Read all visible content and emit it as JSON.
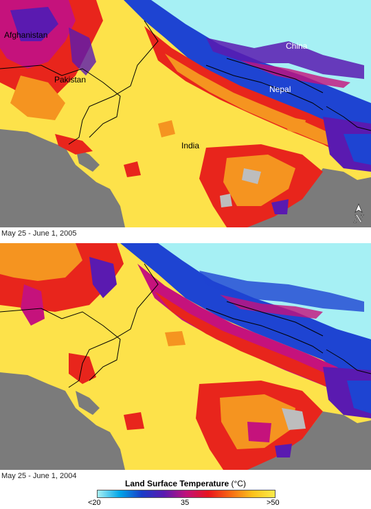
{
  "maps": [
    {
      "id": "map-2005",
      "caption": "May 25 - June 1, 2005",
      "labels": {
        "afghanistan": "Afghanistan",
        "pakistan": "Pakistan",
        "india": "India",
        "china": "China",
        "nepal": "Nepal"
      }
    },
    {
      "id": "map-2004",
      "caption": "May 25 - June 1, 2004"
    }
  ],
  "legend": {
    "title": "Land Surface Temperature",
    "unit": "(°C)",
    "tick_min": "<20",
    "tick_mid": "35",
    "tick_max": ">50",
    "colors": [
      "#a8f0f4",
      "#00a6e8",
      "#1a3cc8",
      "#5a1ab0",
      "#c0127a",
      "#e8141e",
      "#f86a14",
      "#fcc21c",
      "#fcea4a"
    ]
  },
  "colors": {
    "ocean": "#7b7b7b",
    "hot": "#fde24a",
    "warm": "#f59420",
    "red": "#e8251c",
    "magenta": "#c5127c",
    "purple": "#5a1ab0",
    "blue": "#1e44d2",
    "cyan": "#a6f0f4"
  },
  "north_arrow": {
    "icon": "north-arrow-icon",
    "letter": "N"
  }
}
